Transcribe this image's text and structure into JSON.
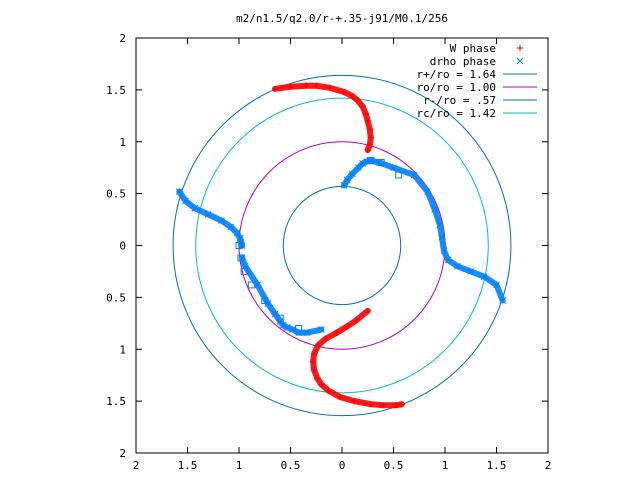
{
  "chart_data": {
    "type": "scatter",
    "title": "m2/n1.5/q2.0/r-+.35-j91/M0.1/256",
    "xlabel": "",
    "ylabel": "",
    "xlim": [
      -2,
      2
    ],
    "ylim": [
      -2,
      2
    ],
    "x_ticks": [
      -2,
      -1.5,
      -1,
      -0.5,
      0,
      0.5,
      1,
      1.5,
      2
    ],
    "y_ticks": [
      -2,
      -1.5,
      -1,
      -0.5,
      0,
      0.5,
      1,
      1.5,
      2
    ],
    "x_tick_labels": [
      "2",
      "1.5",
      "1",
      "0.5",
      "0",
      "0.5",
      "1",
      "1.5",
      "2"
    ],
    "y_tick_labels": [
      "2",
      "1.5",
      "1",
      "0.5",
      "0",
      "0.5",
      "1",
      "1.5",
      "2"
    ],
    "grid": false,
    "legend_position": "top-right",
    "colors": {
      "w_phase": "#ff0000",
      "drho_phase": "#0080ff",
      "r_plus": "#0070c0",
      "ro": "#b000c0",
      "r_minus": "#0070c0",
      "rc": "#00c0c0"
    },
    "circles": [
      {
        "name": "r+/ro = 1.64",
        "radius": 1.64
      },
      {
        "name": "ro/ro = 1.00",
        "radius": 1.0
      },
      {
        "name": "r-/ro = .57",
        "radius": 0.57
      },
      {
        "name": "rc/ro = 1.42",
        "radius": 1.42
      }
    ],
    "series": [
      {
        "name": "W phase",
        "marker": "plus",
        "x": [
          -0.65,
          -0.5,
          -0.35,
          -0.25,
          -0.12,
          0.02,
          0.1,
          0.15,
          0.2,
          0.23,
          0.25,
          0.27,
          0.28,
          0.27,
          0.25,
          0.25,
          0.14,
          0.05,
          -0.05,
          -0.16,
          -0.23,
          -0.27,
          -0.28,
          -0.27,
          -0.24,
          -0.2,
          -0.13,
          -0.02,
          0.12,
          0.28,
          0.4,
          0.52,
          0.58
        ],
        "y": [
          1.51,
          1.53,
          1.54,
          1.54,
          1.52,
          1.48,
          1.44,
          1.4,
          1.34,
          1.27,
          1.2,
          1.12,
          1.04,
          0.97,
          0.92,
          -0.63,
          -0.72,
          -0.78,
          -0.84,
          -0.9,
          -0.96,
          -1.04,
          -1.12,
          -1.2,
          -1.28,
          -1.34,
          -1.4,
          -1.46,
          -1.5,
          -1.53,
          -1.54,
          -1.54,
          -1.53
        ]
      },
      {
        "name": "drho phase",
        "marker": "cross",
        "x": [
          -1.58,
          -1.52,
          -1.43,
          -1.3,
          -1.17,
          -1.08,
          -1.02,
          -0.99,
          -0.98,
          -0.97,
          0.02,
          0.05,
          0.1,
          0.16,
          0.2,
          0.24,
          0.27,
          0.36,
          0.5,
          0.7,
          0.83,
          0.9,
          0.95,
          0.97,
          0.99,
          1.03,
          1.12,
          1.25,
          1.38,
          1.5,
          1.56,
          -0.2,
          -0.34,
          -0.42,
          -0.48,
          -0.53,
          -0.57,
          -0.6,
          -0.65,
          -0.72,
          -0.82,
          -0.94,
          -0.97
        ],
        "y": [
          0.52,
          0.43,
          0.36,
          0.3,
          0.24,
          0.18,
          0.12,
          0.07,
          0.03,
          0.0,
          0.58,
          0.63,
          0.69,
          0.75,
          0.79,
          0.81,
          0.82,
          0.8,
          0.75,
          0.68,
          0.52,
          0.35,
          0.2,
          0.08,
          -0.05,
          -0.14,
          -0.2,
          -0.25,
          -0.3,
          -0.38,
          -0.53,
          -0.81,
          -0.84,
          -0.84,
          -0.81,
          -0.79,
          -0.77,
          -0.73,
          -0.66,
          -0.56,
          -0.38,
          -0.2,
          -0.12
        ]
      }
    ]
  }
}
